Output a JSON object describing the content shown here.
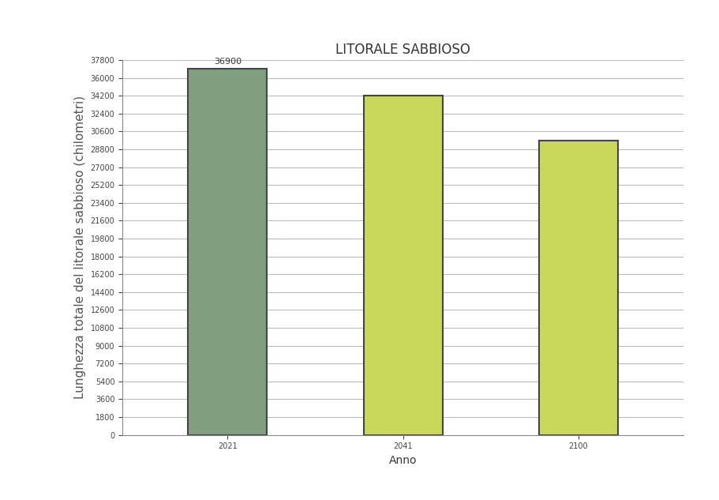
{
  "chart_data": {
    "type": "bar",
    "title": "LITORALE SABBIOSO",
    "x_label": "Anno",
    "y_label": "Lunghezza totale del litorale sabbioso (chilometri)",
    "categories": [
      "2021",
      "2041",
      "2100"
    ],
    "values": [
      36900,
      34200,
      29700
    ],
    "value_labels": [
      "36900",
      null,
      null
    ],
    "data_labels": true,
    "colors": [
      "#7f9f7f",
      "#c9d85a",
      "#c9d85a"
    ],
    "ylim": [
      0,
      37800
    ],
    "yticks": [
      0,
      1800,
      3600,
      5400,
      7200,
      9000,
      10800,
      12600,
      14400,
      16200,
      18000,
      19800,
      21600,
      23400,
      25200,
      27000,
      28800,
      30600,
      32400,
      34200,
      36000,
      37800
    ],
    "grid": true
  }
}
